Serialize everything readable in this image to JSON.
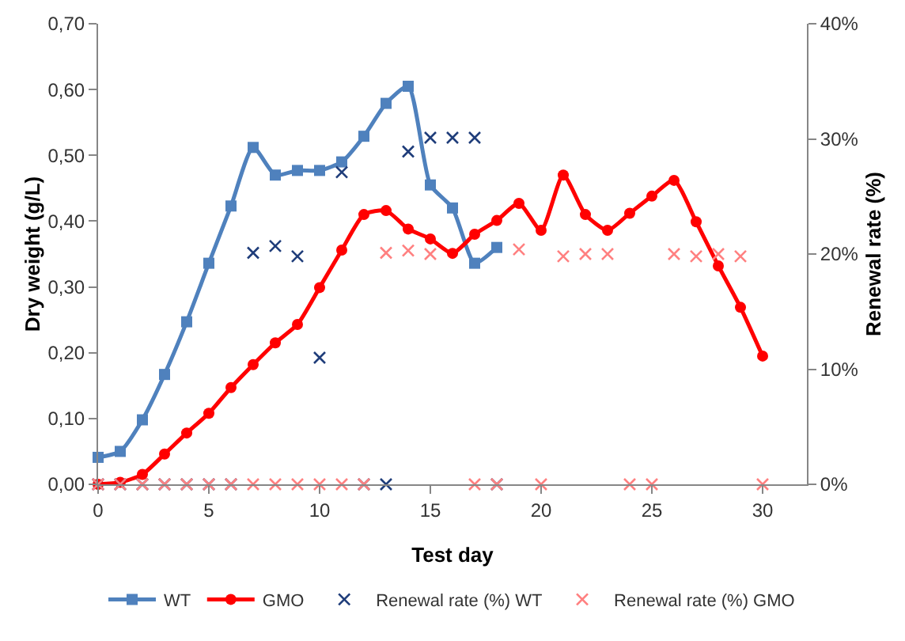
{
  "chart_data": {
    "type": "line",
    "xlabel": "Test day",
    "ylabel": "Dry weight (g/L)",
    "y2label": "Renewal rate (%)",
    "xlim": [
      0,
      32
    ],
    "xticks": [
      0,
      5,
      10,
      15,
      20,
      25,
      30
    ],
    "ylim": [
      0,
      0.7
    ],
    "yticks": [
      {
        "value": 0,
        "label": "0,00"
      },
      {
        "value": 0.1,
        "label": "0,10"
      },
      {
        "value": 0.2,
        "label": "0,20"
      },
      {
        "value": 0.3,
        "label": "0,30"
      },
      {
        "value": 0.4,
        "label": "0,40"
      },
      {
        "value": 0.5,
        "label": "0,50"
      },
      {
        "value": 0.6,
        "label": "0,60"
      },
      {
        "value": 0.7,
        "label": "0,70"
      }
    ],
    "y2lim": [
      0,
      40
    ],
    "y2ticks": [
      {
        "value": 0,
        "label": "0%"
      },
      {
        "value": 10,
        "label": "10%"
      },
      {
        "value": 20,
        "label": "20%"
      },
      {
        "value": 30,
        "label": "30%"
      },
      {
        "value": 40,
        "label": "40%"
      }
    ],
    "grid": false,
    "legend": "bottom",
    "series": [
      {
        "name": "WT",
        "marker": "square",
        "color": "#4f81bd",
        "x": [
          0,
          1,
          2,
          3,
          4,
          5,
          6,
          7,
          8,
          9,
          10,
          11,
          12,
          13,
          14,
          15,
          16,
          17,
          18
        ],
        "values": [
          0.041,
          0.05,
          0.098,
          0.167,
          0.247,
          0.336,
          0.423,
          0.512,
          0.47,
          0.477,
          0.477,
          0.49,
          0.529,
          0.579,
          0.605,
          0.455,
          0.42,
          0.336,
          0.36
        ]
      },
      {
        "name": "GMO",
        "marker": "circle",
        "color": "#ff0000",
        "x": [
          0,
          1,
          2,
          3,
          4,
          5,
          6,
          7,
          8,
          9,
          10,
          11,
          12,
          13,
          14,
          15,
          16,
          17,
          18,
          19,
          20,
          21,
          22,
          23,
          24,
          25,
          26,
          27,
          28,
          29,
          30
        ],
        "values": [
          0,
          0.003,
          0.015,
          0.046,
          0.078,
          0.108,
          0.147,
          0.182,
          0.215,
          0.243,
          0.299,
          0.356,
          0.41,
          0.416,
          0.388,
          0.373,
          0.351,
          0.38,
          0.401,
          0.427,
          0.386,
          0.47,
          0.41,
          0.386,
          0.412,
          0.438,
          0.462,
          0.399,
          0.332,
          0.269,
          0.195
        ]
      },
      {
        "name": "Renewal rate (%) WT",
        "type": "scatter",
        "marker": "cross",
        "axis": "y2",
        "color": "#1f3d7a",
        "x": [
          0,
          1,
          2,
          3,
          4,
          5,
          6,
          7,
          8,
          9,
          10,
          11,
          12,
          13,
          14,
          15,
          16,
          17,
          18
        ],
        "values": [
          0,
          0,
          0,
          0,
          0,
          0,
          0,
          20.1,
          20.7,
          19.8,
          11,
          27.1,
          0,
          0,
          28.9,
          30.1,
          30.1,
          30.1,
          0
        ]
      },
      {
        "name": "Renewal rate (%) GMO",
        "type": "scatter",
        "marker": "cross",
        "axis": "y2",
        "color": "#ff8080",
        "x": [
          0,
          1,
          2,
          3,
          4,
          5,
          6,
          7,
          8,
          9,
          10,
          11,
          12,
          13,
          14,
          15,
          16,
          17,
          18,
          19,
          20,
          21,
          22,
          23,
          24,
          25,
          26,
          27,
          28,
          29,
          30
        ],
        "values": [
          0,
          0,
          0,
          0,
          0,
          0,
          0,
          0,
          0,
          0,
          0,
          0,
          0,
          20.1,
          20.3,
          20,
          null,
          0,
          0,
          20.4,
          0,
          19.8,
          20,
          20,
          0,
          0,
          20,
          19.8,
          20,
          19.8,
          0
        ]
      }
    ]
  }
}
